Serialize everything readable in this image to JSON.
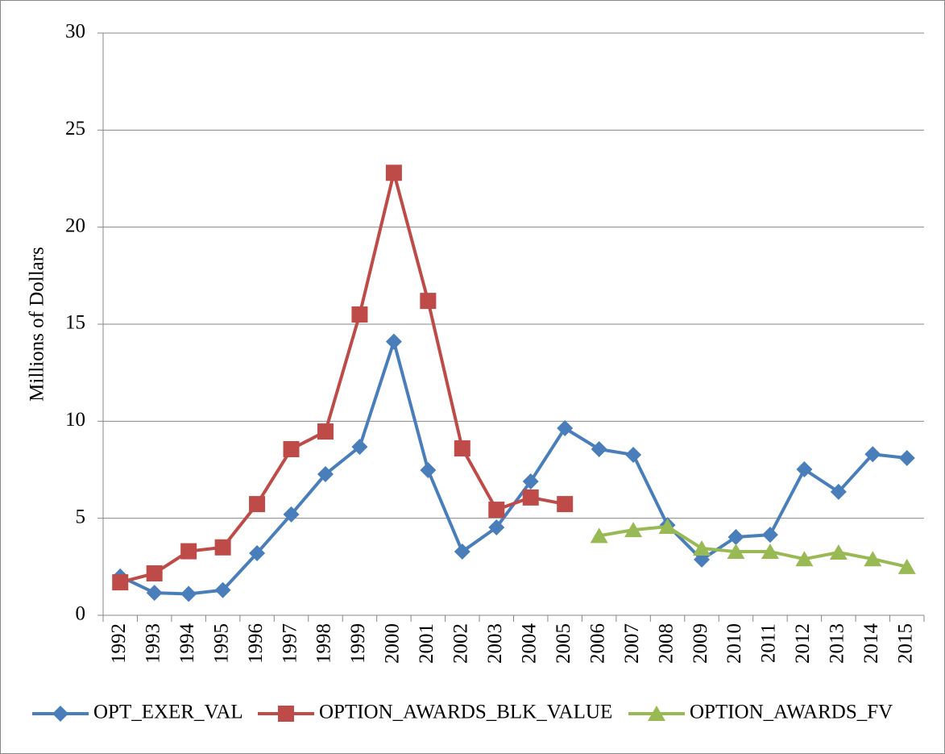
{
  "chart_data": {
    "type": "line",
    "y_label": "Millions of Dollars",
    "categories": [
      "1992",
      "1993",
      "1994",
      "1995",
      "1996",
      "1997",
      "1998",
      "1999",
      "2000",
      "2001",
      "2002",
      "2003",
      "2004",
      "2005",
      "2006",
      "2007",
      "2008",
      "2009",
      "2010",
      "2011",
      "2012",
      "2013",
      "2014",
      "2015"
    ],
    "series": [
      {
        "name": "OPT_EXER_VAL",
        "color": "#4a7ebb",
        "marker": "diamond",
        "values": [
          2.0,
          1.16,
          1.1,
          1.3,
          3.2,
          5.2,
          7.27,
          8.68,
          14.1,
          7.48,
          3.28,
          4.53,
          6.9,
          9.64,
          8.56,
          8.27,
          4.65,
          2.87,
          4.03,
          4.15,
          7.52,
          6.36,
          8.3,
          8.1
        ]
      },
      {
        "name": "OPTION_AWARDS_BLK_VALUE",
        "color": "#be4b48",
        "marker": "square",
        "values": [
          1.7,
          2.16,
          3.3,
          3.5,
          5.73,
          8.56,
          9.47,
          15.5,
          22.8,
          16.2,
          8.6,
          5.44,
          6.07,
          5.73,
          null,
          null,
          null,
          null,
          null,
          null,
          null,
          null,
          null,
          null
        ]
      },
      {
        "name": "OPTION_AWARDS_FV",
        "color": "#98b954",
        "marker": "triangle",
        "values": [
          null,
          null,
          null,
          null,
          null,
          null,
          null,
          null,
          null,
          null,
          null,
          null,
          null,
          null,
          4.1,
          4.4,
          4.57,
          3.45,
          3.28,
          3.28,
          2.9,
          3.24,
          2.9,
          2.5
        ]
      }
    ],
    "ylim": [
      0,
      30
    ],
    "yticks": [
      0,
      5,
      10,
      15,
      20,
      25,
      30
    ],
    "grid": true,
    "legend": "bottom"
  }
}
